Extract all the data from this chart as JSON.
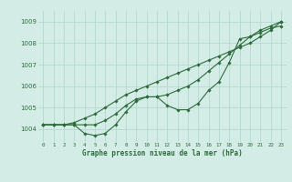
{
  "background_color": "#d4ece6",
  "grid_color": "#b0d4cc",
  "line_color": "#2d6b3c",
  "xlabel": "Graphe pression niveau de la mer (hPa)",
  "ylim": [
    1003.4,
    1009.5
  ],
  "xlim": [
    -0.5,
    23.5
  ],
  "yticks": [
    1004,
    1005,
    1006,
    1007,
    1008,
    1009
  ],
  "xticks": [
    0,
    1,
    2,
    3,
    4,
    5,
    6,
    7,
    8,
    9,
    10,
    11,
    12,
    13,
    14,
    15,
    16,
    17,
    18,
    19,
    20,
    21,
    22,
    23
  ],
  "series1": [
    1004.2,
    1004.2,
    1004.2,
    1004.2,
    1003.8,
    1003.7,
    1003.8,
    1004.2,
    1004.8,
    1005.3,
    1005.5,
    1005.5,
    1005.1,
    1004.9,
    1004.9,
    1005.2,
    1005.8,
    1006.2,
    1007.1,
    1008.2,
    1008.3,
    1008.5,
    1008.7,
    1008.8
  ],
  "series2": [
    1004.2,
    1004.2,
    1004.2,
    1004.2,
    1004.2,
    1004.2,
    1004.4,
    1004.7,
    1005.1,
    1005.4,
    1005.5,
    1005.5,
    1005.6,
    1005.8,
    1006.0,
    1006.3,
    1006.7,
    1007.1,
    1007.5,
    1007.9,
    1008.3,
    1008.6,
    1008.8,
    1009.0
  ],
  "series3": [
    1004.2,
    1004.2,
    1004.2,
    1004.3,
    1004.5,
    1004.7,
    1005.0,
    1005.3,
    1005.6,
    1005.8,
    1006.0,
    1006.2,
    1006.4,
    1006.6,
    1006.8,
    1007.0,
    1007.2,
    1007.4,
    1007.6,
    1007.8,
    1008.0,
    1008.3,
    1008.6,
    1009.0
  ],
  "figsize": [
    3.2,
    2.0
  ],
  "dpi": 100
}
